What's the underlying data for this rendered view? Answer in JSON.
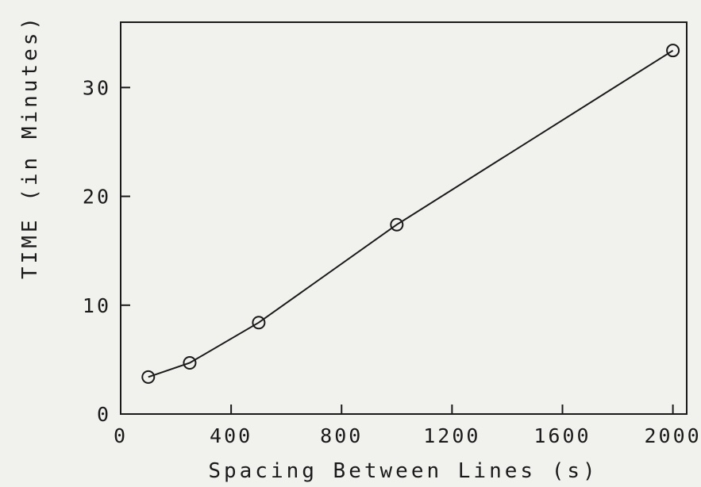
{
  "chart_data": {
    "type": "line",
    "title": "",
    "xlabel": "Spacing Between Lines (s)",
    "ylabel": "TIME (in Minutes)",
    "xlim": [
      0,
      2050
    ],
    "ylim": [
      0,
      36
    ],
    "x_ticks": [
      0,
      400,
      800,
      1200,
      1600,
      2000
    ],
    "y_ticks": [
      0,
      10,
      20,
      30
    ],
    "grid": false,
    "series": [
      {
        "x": [
          100,
          250,
          500,
          1000,
          2000
        ],
        "y": [
          3.4,
          4.7,
          8.4,
          17.4,
          33.4
        ]
      }
    ]
  }
}
